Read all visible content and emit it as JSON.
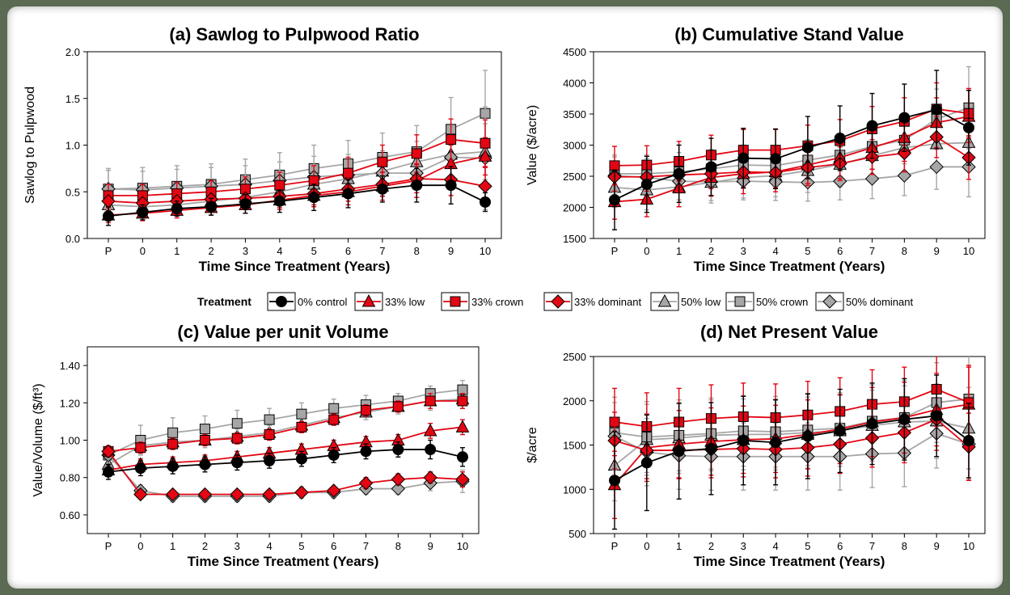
{
  "figure": {
    "legend": {
      "title": "Treatment",
      "items": [
        {
          "label": "0% control",
          "color": "#000000",
          "marker": "circle"
        },
        {
          "label": "33% low",
          "color": "#e30613",
          "marker": "triangle"
        },
        {
          "label": "33% crown",
          "color": "#e30613",
          "marker": "square"
        },
        {
          "label": "33% dominant",
          "color": "#e30613",
          "marker": "diamond"
        },
        {
          "label": "50% low",
          "color": "#a6a6a6",
          "marker": "triangle"
        },
        {
          "label": "50% crown",
          "color": "#a6a6a6",
          "marker": "square"
        },
        {
          "label": "50% dominant",
          "color": "#a6a6a6",
          "marker": "diamond"
        }
      ]
    }
  },
  "chart_data": [
    {
      "type": "line",
      "title": "(a) Sawlog to Pulpwood Ratio",
      "xlabel": "Time Since Treatment (Years)",
      "ylabel": "Sawlog to Pulpwood",
      "x": [
        "P",
        "0",
        "1",
        "2",
        "3",
        "4",
        "5",
        "6",
        "7",
        "8",
        "9",
        "10"
      ],
      "ylim": [
        0.0,
        2.0
      ],
      "yticks": [
        "0.0",
        "0.5",
        "1.0",
        "1.5",
        "2.0"
      ],
      "series": [
        {
          "name": "0% control",
          "values": [
            0.24,
            0.28,
            0.32,
            0.34,
            0.37,
            0.4,
            0.44,
            0.48,
            0.53,
            0.57,
            0.57,
            0.39
          ],
          "err": [
            0.1,
            0.08,
            0.08,
            0.09,
            0.1,
            0.12,
            0.14,
            0.15,
            0.14,
            0.18,
            0.2,
            0.1
          ]
        },
        {
          "name": "33% low",
          "values": [
            0.25,
            0.27,
            0.3,
            0.33,
            0.36,
            0.41,
            0.46,
            0.5,
            0.56,
            0.62,
            0.8,
            0.88
          ],
          "err": [
            0.08,
            0.08,
            0.08,
            0.08,
            0.09,
            0.1,
            0.12,
            0.14,
            0.15,
            0.18,
            0.2,
            0.2
          ]
        },
        {
          "name": "33% crown",
          "values": [
            0.46,
            0.46,
            0.48,
            0.5,
            0.53,
            0.57,
            0.62,
            0.7,
            0.82,
            0.91,
            1.06,
            1.02
          ],
          "err": [
            0.12,
            0.12,
            0.12,
            0.12,
            0.13,
            0.14,
            0.16,
            0.17,
            0.18,
            0.2,
            0.22,
            0.25
          ]
        },
        {
          "name": "33% dominant",
          "values": [
            0.4,
            0.38,
            0.4,
            0.42,
            0.43,
            0.45,
            0.48,
            0.53,
            0.58,
            0.64,
            0.63,
            0.56
          ],
          "err": [
            0.1,
            0.1,
            0.1,
            0.1,
            0.1,
            0.12,
            0.12,
            0.13,
            0.13,
            0.15,
            0.17,
            0.2
          ]
        },
        {
          "name": "50% low",
          "values": [
            0.36,
            0.34,
            0.36,
            0.4,
            0.44,
            0.5,
            0.58,
            0.64,
            0.72,
            0.82,
            0.9,
            0.93
          ],
          "err": [
            0.12,
            0.12,
            0.12,
            0.12,
            0.13,
            0.14,
            0.16,
            0.17,
            0.2,
            0.22,
            0.25,
            0.3
          ]
        },
        {
          "name": "50% crown",
          "values": [
            0.53,
            0.54,
            0.56,
            0.58,
            0.63,
            0.68,
            0.75,
            0.8,
            0.87,
            0.93,
            1.17,
            1.34
          ],
          "err": [
            0.22,
            0.22,
            0.22,
            0.22,
            0.22,
            0.24,
            0.25,
            0.25,
            0.26,
            0.28,
            0.34,
            0.46
          ]
        },
        {
          "name": "50% dominant",
          "values": [
            0.53,
            0.52,
            0.54,
            0.56,
            0.58,
            0.62,
            0.66,
            0.68,
            0.7,
            0.7,
            0.87,
            0.86
          ],
          "err": [
            0.2,
            0.2,
            0.2,
            0.2,
            0.2,
            0.2,
            0.22,
            0.22,
            0.24,
            0.26,
            0.3,
            0.55
          ]
        }
      ]
    },
    {
      "type": "line",
      "title": "(b) Cumulative Stand Value",
      "xlabel": "Time Since Treatment (Years)",
      "ylabel": "Value ($/acre)",
      "x": [
        "P",
        "0",
        "1",
        "2",
        "3",
        "4",
        "5",
        "6",
        "7",
        "8",
        "9",
        "10"
      ],
      "ylim": [
        1500,
        4500
      ],
      "yticks": [
        "1500",
        "2000",
        "2500",
        "3000",
        "3500",
        "4000",
        "4500"
      ],
      "series": [
        {
          "name": "0% control",
          "values": [
            2120,
            2370,
            2540,
            2650,
            2790,
            2780,
            2960,
            3110,
            3310,
            3440,
            3570,
            3280
          ],
          "err": [
            480,
            450,
            460,
            460,
            480,
            480,
            500,
            520,
            520,
            540,
            630,
            600
          ]
        },
        {
          "name": "33% low",
          "values": [
            2090,
            2130,
            2310,
            2480,
            2540,
            2570,
            2680,
            2800,
            2960,
            3120,
            3360,
            3460
          ],
          "err": [
            280,
            280,
            300,
            300,
            320,
            320,
            330,
            340,
            350,
            380,
            400,
            420
          ]
        },
        {
          "name": "33% crown",
          "values": [
            2670,
            2680,
            2740,
            2840,
            2920,
            2920,
            2990,
            3070,
            3260,
            3380,
            3580,
            3510
          ],
          "err": [
            310,
            310,
            320,
            320,
            330,
            330,
            330,
            340,
            360,
            380,
            420,
            400
          ]
        },
        {
          "name": "33% dominant",
          "values": [
            2490,
            2490,
            2520,
            2540,
            2570,
            2560,
            2640,
            2700,
            2810,
            2870,
            3130,
            2800
          ],
          "err": [
            230,
            230,
            240,
            240,
            250,
            250,
            260,
            270,
            280,
            300,
            330,
            350
          ]
        },
        {
          "name": "50% low",
          "values": [
            2320,
            2280,
            2330,
            2400,
            2480,
            2510,
            2590,
            2690,
            2830,
            2960,
            3020,
            3040
          ],
          "err": [
            320,
            320,
            320,
            330,
            330,
            340,
            350,
            360,
            370,
            390,
            420,
            460
          ]
        },
        {
          "name": "50% crown",
          "values": [
            2540,
            2540,
            2570,
            2620,
            2680,
            2670,
            2760,
            2840,
            2980,
            3080,
            3420,
            3600
          ],
          "err": [
            300,
            300,
            310,
            310,
            320,
            320,
            330,
            340,
            360,
            380,
            480,
            660
          ]
        },
        {
          "name": "50% dominant",
          "values": [
            2510,
            2480,
            2420,
            2410,
            2420,
            2410,
            2400,
            2420,
            2460,
            2510,
            2650,
            2650
          ],
          "err": [
            300,
            300,
            300,
            300,
            300,
            300,
            300,
            300,
            320,
            320,
            360,
            480
          ]
        }
      ]
    },
    {
      "type": "line",
      "title": "(c) Value per unit Volume",
      "xlabel": "Time Since Treatment (Years)",
      "ylabel": "Value/Volume ($/ft³)",
      "x": [
        "P",
        "0",
        "1",
        "2",
        "3",
        "4",
        "5",
        "6",
        "7",
        "8",
        "9",
        "10"
      ],
      "ylim": [
        0.5,
        1.5
      ],
      "yticks": [
        "0.60",
        "0.80",
        "1.00",
        "1.20",
        "1.40"
      ],
      "series": [
        {
          "name": "0% control",
          "values": [
            0.83,
            0.85,
            0.86,
            0.87,
            0.88,
            0.89,
            0.9,
            0.92,
            0.94,
            0.95,
            0.95,
            0.91
          ],
          "err": [
            0.04,
            0.04,
            0.04,
            0.04,
            0.04,
            0.04,
            0.04,
            0.04,
            0.04,
            0.04,
            0.05,
            0.05
          ]
        },
        {
          "name": "33% low",
          "values": [
            0.84,
            0.87,
            0.88,
            0.89,
            0.91,
            0.93,
            0.95,
            0.97,
            0.99,
            1.0,
            1.05,
            1.07
          ],
          "err": [
            0.03,
            0.03,
            0.03,
            0.03,
            0.03,
            0.03,
            0.03,
            0.03,
            0.03,
            0.03,
            0.04,
            0.04
          ]
        },
        {
          "name": "33% crown",
          "values": [
            0.94,
            0.96,
            0.98,
            1.0,
            1.01,
            1.03,
            1.07,
            1.11,
            1.16,
            1.18,
            1.21,
            1.21
          ],
          "err": [
            0.03,
            0.03,
            0.03,
            0.03,
            0.03,
            0.03,
            0.03,
            0.03,
            0.03,
            0.03,
            0.04,
            0.04
          ]
        },
        {
          "name": "33% dominant",
          "values": [
            0.94,
            0.71,
            0.71,
            0.71,
            0.71,
            0.71,
            0.72,
            0.73,
            0.77,
            0.79,
            0.8,
            0.79
          ],
          "err": [
            0.02,
            0.02,
            0.02,
            0.02,
            0.02,
            0.02,
            0.02,
            0.02,
            0.03,
            0.03,
            0.03,
            0.04
          ]
        },
        {
          "name": "50% low",
          "values": [
            0.87,
            0.97,
            0.99,
            1.0,
            1.02,
            1.04,
            1.08,
            1.12,
            1.15,
            1.18,
            1.21,
            1.22
          ],
          "err": [
            0.04,
            0.04,
            0.04,
            0.04,
            0.04,
            0.04,
            0.04,
            0.04,
            0.04,
            0.04,
            0.05,
            0.05
          ]
        },
        {
          "name": "50% crown",
          "values": [
            0.92,
            1.0,
            1.04,
            1.06,
            1.09,
            1.11,
            1.14,
            1.17,
            1.19,
            1.21,
            1.25,
            1.27
          ],
          "err": [
            0.05,
            0.08,
            0.08,
            0.07,
            0.07,
            0.06,
            0.06,
            0.05,
            0.05,
            0.04,
            0.04,
            0.05
          ]
        },
        {
          "name": "50% dominant",
          "values": [
            0.92,
            0.73,
            0.7,
            0.7,
            0.7,
            0.7,
            0.72,
            0.72,
            0.74,
            0.74,
            0.77,
            0.78
          ],
          "err": [
            0.03,
            0.03,
            0.03,
            0.03,
            0.03,
            0.03,
            0.03,
            0.03,
            0.03,
            0.03,
            0.04,
            0.06
          ]
        }
      ]
    },
    {
      "type": "line",
      "title": "(d) Net Present Value",
      "xlabel": "Time Since Treatment (Years)",
      "ylabel": "$/acre",
      "x": [
        "P",
        "0",
        "1",
        "2",
        "3",
        "4",
        "5",
        "6",
        "7",
        "8",
        "9",
        "10"
      ],
      "ylim": [
        500,
        2500
      ],
      "yticks": [
        "500",
        "1000",
        "1500",
        "2000",
        "2500"
      ],
      "series": [
        {
          "name": "0% control",
          "values": [
            1100,
            1300,
            1430,
            1460,
            1550,
            1530,
            1600,
            1660,
            1740,
            1790,
            1830,
            1550
          ],
          "err": [
            550,
            540,
            540,
            520,
            500,
            480,
            480,
            470,
            460,
            460,
            460,
            420
          ]
        },
        {
          "name": "33% low",
          "values": [
            1050,
            1470,
            1510,
            1540,
            1560,
            1570,
            1620,
            1680,
            1760,
            1810,
            1900,
            1960
          ],
          "err": [
            380,
            380,
            380,
            380,
            380,
            380,
            390,
            390,
            390,
            400,
            410,
            420
          ]
        },
        {
          "name": "33% crown",
          "values": [
            1760,
            1710,
            1760,
            1800,
            1820,
            1810,
            1840,
            1880,
            1960,
            1990,
            2130,
            1980
          ],
          "err": [
            380,
            380,
            380,
            380,
            380,
            380,
            380,
            380,
            390,
            390,
            420,
            420
          ]
        },
        {
          "name": "33% dominant",
          "values": [
            1550,
            1440,
            1440,
            1450,
            1460,
            1450,
            1470,
            1510,
            1580,
            1640,
            1790,
            1480
          ],
          "err": [
            320,
            320,
            320,
            320,
            320,
            320,
            320,
            330,
            330,
            340,
            350,
            380
          ]
        },
        {
          "name": "50% low",
          "values": [
            1270,
            1560,
            1580,
            1610,
            1620,
            1620,
            1640,
            1660,
            1720,
            1760,
            1770,
            1690
          ],
          "err": [
            400,
            400,
            400,
            400,
            400,
            400,
            400,
            400,
            400,
            410,
            420,
            460
          ]
        },
        {
          "name": "50% crown",
          "values": [
            1640,
            1590,
            1610,
            1630,
            1660,
            1650,
            1670,
            1690,
            1770,
            1810,
            1980,
            2020
          ],
          "err": [
            400,
            400,
            400,
            400,
            400,
            400,
            400,
            400,
            410,
            420,
            450,
            490
          ]
        },
        {
          "name": "50% dominant",
          "values": [
            1600,
            1420,
            1380,
            1370,
            1370,
            1370,
            1370,
            1370,
            1400,
            1410,
            1630,
            1510
          ],
          "err": [
            380,
            380,
            380,
            380,
            380,
            380,
            380,
            380,
            380,
            380,
            390,
            400
          ]
        }
      ]
    }
  ]
}
